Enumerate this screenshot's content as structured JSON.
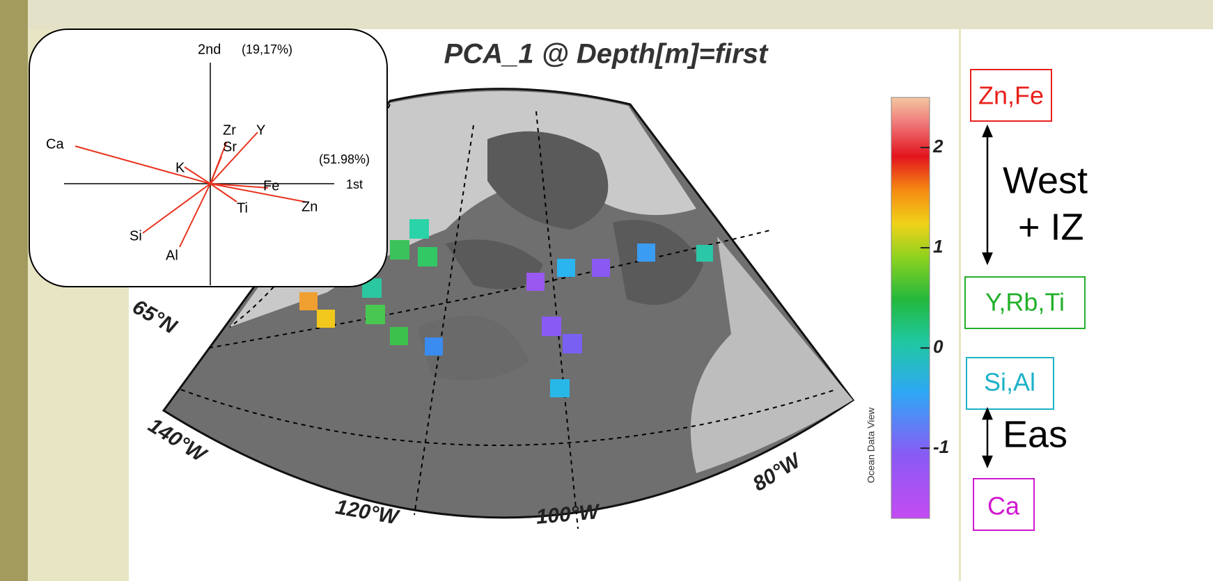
{
  "biplot": {
    "axis_y_label": "2nd",
    "axis_y_percent": "(19,17%)",
    "axis_x_label": "1st",
    "axis_x_percent": "(51.98%)",
    "loadings": [
      "Ca",
      "Zr",
      "Sr",
      "Y",
      "K",
      "Fe",
      "Ti",
      "Zn",
      "Si",
      "Al"
    ]
  },
  "map": {
    "title": "PCA_1 @ Depth[m]=first",
    "lat_label": "65°N",
    "lon_labels": [
      "140°W",
      "120°W",
      "100°W",
      "80°W"
    ],
    "colorbar": {
      "range": [
        -1.7,
        2.5
      ],
      "ticks": [
        2,
        1,
        0,
        -1
      ],
      "caption": "Ocean Data View"
    }
  },
  "legend": {
    "groups": [
      "Zn,Fe",
      "Y,Rb,Ti",
      "Si,Al",
      "Ca"
    ],
    "west_label": "West",
    "west_sub": "+ IZ",
    "east_label": "Eas"
  }
}
